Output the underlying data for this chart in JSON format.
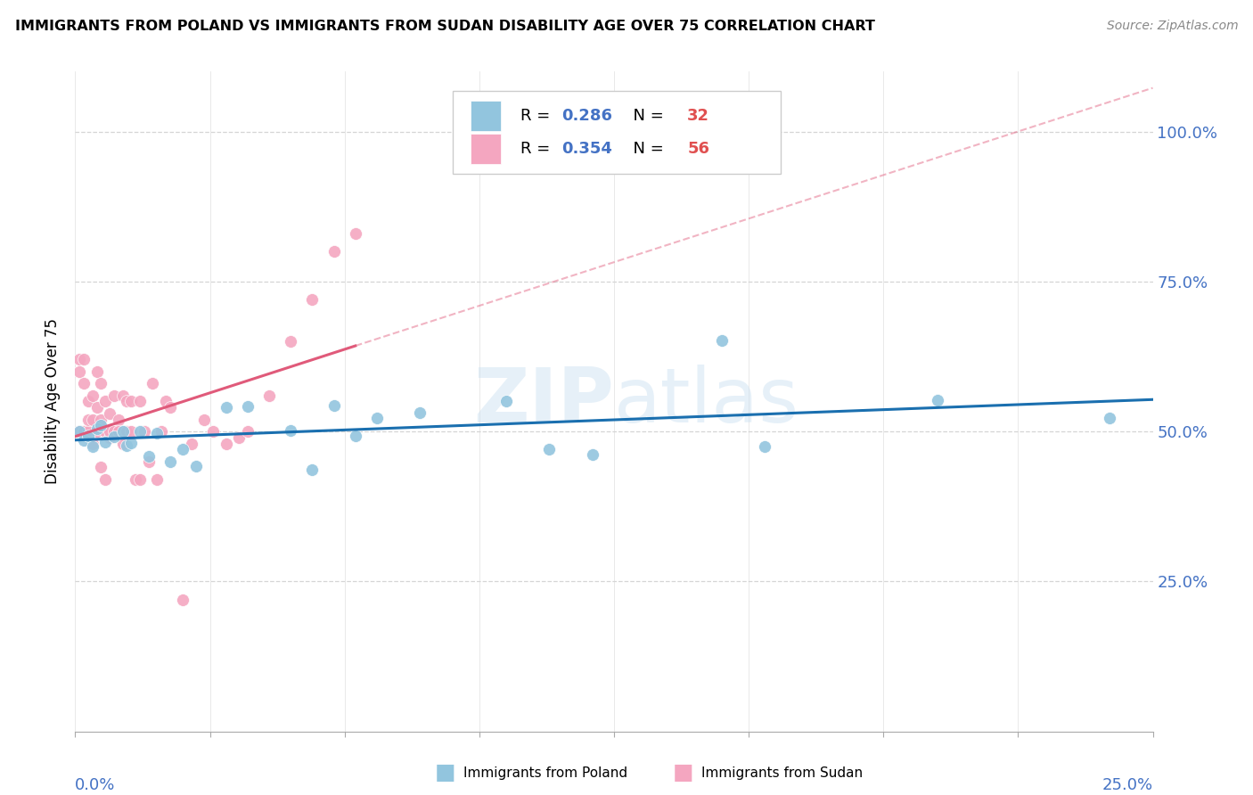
{
  "title": "IMMIGRANTS FROM POLAND VS IMMIGRANTS FROM SUDAN DISABILITY AGE OVER 75 CORRELATION CHART",
  "source": "Source: ZipAtlas.com",
  "ylabel": "Disability Age Over 75",
  "ytick_vals": [
    1.0,
    0.75,
    0.5,
    0.25
  ],
  "ytick_labels": [
    "100.0%",
    "75.0%",
    "50.0%",
    "25.0%"
  ],
  "xlim": [
    0.0,
    0.25
  ],
  "ylim": [
    0.0,
    1.1
  ],
  "legend_poland_R": "0.286",
  "legend_poland_N": "32",
  "legend_sudan_R": "0.354",
  "legend_sudan_N": "56",
  "poland_color": "#92c5de",
  "sudan_color": "#f4a6c0",
  "poland_line_color": "#1a6faf",
  "sudan_line_color": "#e05a7a",
  "watermark": "ZIPatlas",
  "poland_x": [
    0.001,
    0.002,
    0.003,
    0.004,
    0.005,
    0.006,
    0.007,
    0.009,
    0.011,
    0.012,
    0.013,
    0.015,
    0.017,
    0.019,
    0.022,
    0.025,
    0.028,
    0.035,
    0.04,
    0.05,
    0.055,
    0.06,
    0.065,
    0.07,
    0.08,
    0.1,
    0.11,
    0.12,
    0.15,
    0.16,
    0.2,
    0.24
  ],
  "poland_y": [
    0.5,
    0.485,
    0.492,
    0.475,
    0.505,
    0.51,
    0.482,
    0.491,
    0.5,
    0.477,
    0.481,
    0.5,
    0.458,
    0.497,
    0.45,
    0.471,
    0.442,
    0.54,
    0.542,
    0.502,
    0.437,
    0.543,
    0.492,
    0.522,
    0.531,
    0.55,
    0.471,
    0.462,
    0.652,
    0.475,
    0.552,
    0.523
  ],
  "sudan_x": [
    0.001,
    0.001,
    0.001,
    0.002,
    0.002,
    0.002,
    0.003,
    0.003,
    0.003,
    0.004,
    0.004,
    0.004,
    0.005,
    0.005,
    0.005,
    0.006,
    0.006,
    0.006,
    0.007,
    0.007,
    0.007,
    0.008,
    0.008,
    0.008,
    0.009,
    0.009,
    0.01,
    0.01,
    0.011,
    0.011,
    0.012,
    0.012,
    0.013,
    0.013,
    0.014,
    0.015,
    0.015,
    0.016,
    0.017,
    0.018,
    0.019,
    0.02,
    0.021,
    0.022,
    0.025,
    0.027,
    0.03,
    0.032,
    0.035,
    0.038,
    0.04,
    0.045,
    0.05,
    0.055,
    0.06,
    0.065
  ],
  "sudan_y": [
    0.5,
    0.6,
    0.62,
    0.58,
    0.62,
    0.5,
    0.5,
    0.52,
    0.55,
    0.48,
    0.56,
    0.52,
    0.5,
    0.54,
    0.6,
    0.58,
    0.52,
    0.44,
    0.55,
    0.5,
    0.42,
    0.49,
    0.53,
    0.5,
    0.56,
    0.5,
    0.52,
    0.5,
    0.56,
    0.48,
    0.5,
    0.55,
    0.55,
    0.5,
    0.42,
    0.42,
    0.55,
    0.5,
    0.45,
    0.58,
    0.42,
    0.5,
    0.55,
    0.54,
    0.22,
    0.48,
    0.52,
    0.5,
    0.48,
    0.49,
    0.5,
    0.56,
    0.65,
    0.72,
    0.8,
    0.83
  ]
}
